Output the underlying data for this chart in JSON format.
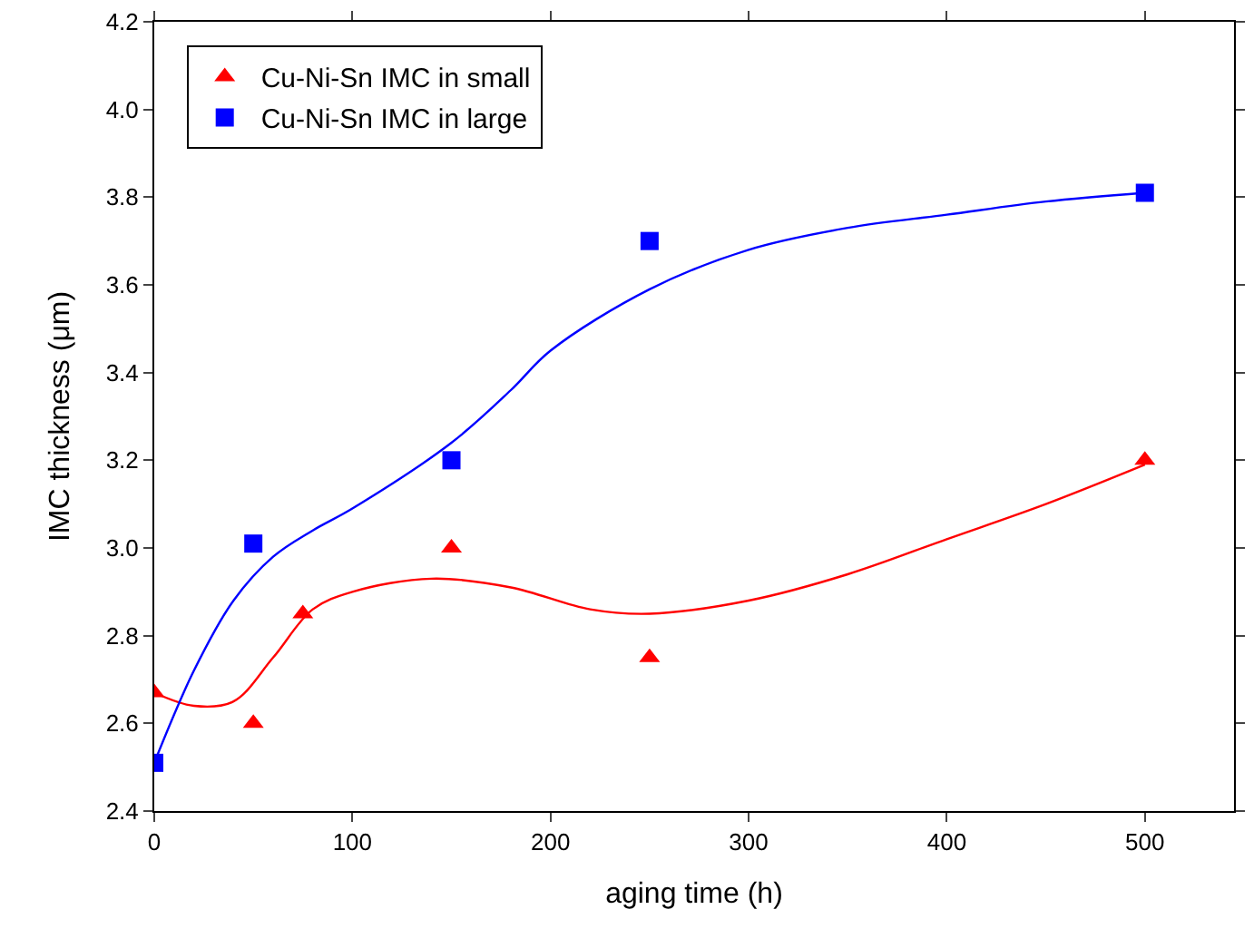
{
  "chart_data": {
    "type": "scatter",
    "xlabel": "aging time (h)",
    "ylabel": "IMC thickness (μm)",
    "xlim": [
      0,
      545
    ],
    "xticks": [
      0,
      100,
      200,
      300,
      400,
      500
    ],
    "ylim": [
      2.4,
      4.2
    ],
    "yticks": [
      2.4,
      2.6,
      2.8,
      {
        "value": 3,
        "label": "3.0"
      },
      3.2,
      3.4,
      3.6,
      3.8,
      {
        "value": 4,
        "label": "4.0"
      },
      4.2
    ],
    "legend": "top left",
    "series": [
      {
        "name": "Cu-Ni-Sn IMC in small",
        "color": "#ff0000",
        "marker": "triangle",
        "x": [
          0,
          50,
          75,
          150,
          250,
          500
        ],
        "values": [
          2.67,
          2.6,
          2.85,
          3.0,
          2.75,
          3.2
        ]
      },
      {
        "name": "Cu-Ni-Sn IMC in large",
        "color": "#0000ff",
        "marker": "square",
        "x": [
          0,
          50,
          150,
          250,
          500
        ],
        "values": [
          2.51,
          3.01,
          3.2,
          3.7,
          3.81
        ]
      },
      {
        "type": "line",
        "color": "#ff0000",
        "marker": "none",
        "x": [
          0,
          20,
          40,
          60,
          80,
          100,
          140,
          180,
          220,
          250,
          300,
          350,
          400,
          450,
          500
        ],
        "values": [
          2.67,
          2.64,
          2.65,
          2.75,
          2.86,
          2.9,
          2.93,
          2.91,
          2.86,
          2.85,
          2.88,
          2.94,
          3.02,
          3.1,
          3.19
        ]
      },
      {
        "type": "line",
        "color": "#0000ff",
        "marker": "none",
        "x": [
          0,
          20,
          40,
          60,
          80,
          100,
          150,
          180,
          200,
          250,
          300,
          350,
          400,
          450,
          500
        ],
        "values": [
          2.51,
          2.72,
          2.88,
          2.98,
          3.04,
          3.09,
          3.24,
          3.36,
          3.45,
          3.59,
          3.68,
          3.73,
          3.76,
          3.79,
          3.81
        ]
      }
    ]
  }
}
